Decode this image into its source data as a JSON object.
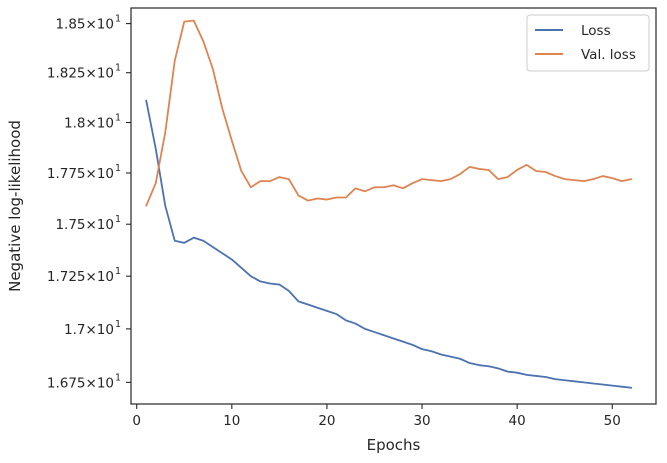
{
  "chart_data": {
    "type": "line",
    "xlabel": "Epochs",
    "ylabel": "Negative log-likelihood",
    "xlim": [
      -0.6,
      54.6
    ],
    "ylim": [
      16.65,
      18.58
    ],
    "y_scale": "log",
    "xticks": [
      0,
      10,
      20,
      30,
      40,
      50
    ],
    "xtick_labels": [
      "0",
      "10",
      "20",
      "30",
      "40",
      "50"
    ],
    "yticks": [
      16.75,
      17.0,
      17.25,
      17.5,
      17.75,
      18.0,
      18.25,
      18.5
    ],
    "ytick_mantissas": [
      "1.675",
      "1.7",
      "1.725",
      "1.75",
      "1.775",
      "1.8",
      "1.825",
      "1.85"
    ],
    "ytick_suffix": "×10",
    "ytick_exponent": "1",
    "grid": false,
    "legend_position": "top-right",
    "x": [
      1,
      2,
      3,
      4,
      5,
      6,
      7,
      8,
      9,
      10,
      11,
      12,
      13,
      14,
      15,
      16,
      17,
      18,
      19,
      20,
      21,
      22,
      23,
      24,
      25,
      26,
      27,
      28,
      29,
      30,
      31,
      32,
      33,
      34,
      35,
      36,
      37,
      38,
      39,
      40,
      41,
      42,
      43,
      44,
      45,
      46,
      47,
      48,
      49,
      50,
      51,
      52
    ],
    "series": [
      {
        "name": "Loss",
        "color": "#4c72b0",
        "values": [
          18.11,
          17.87,
          17.59,
          17.42,
          17.41,
          17.435,
          17.42,
          17.39,
          17.36,
          17.33,
          17.29,
          17.25,
          17.225,
          17.215,
          17.21,
          17.18,
          17.13,
          17.115,
          17.1,
          17.085,
          17.07,
          17.04,
          17.025,
          17.0,
          16.985,
          16.97,
          16.955,
          16.94,
          16.925,
          16.905,
          16.895,
          16.88,
          16.87,
          16.86,
          16.84,
          16.83,
          16.825,
          16.815,
          16.8,
          16.795,
          16.785,
          16.78,
          16.775,
          16.765,
          16.76,
          16.755,
          16.75,
          16.745,
          16.74,
          16.735,
          16.73,
          16.725
        ]
      },
      {
        "name": "Val. loss",
        "color": "#dd8452",
        "values": [
          17.59,
          17.7,
          17.95,
          18.31,
          18.51,
          18.515,
          18.41,
          18.27,
          18.07,
          17.91,
          17.76,
          17.68,
          17.71,
          17.71,
          17.73,
          17.72,
          17.64,
          17.615,
          17.625,
          17.62,
          17.63,
          17.63,
          17.675,
          17.66,
          17.68,
          17.68,
          17.69,
          17.675,
          17.7,
          17.72,
          17.715,
          17.71,
          17.72,
          17.745,
          17.78,
          17.77,
          17.765,
          17.72,
          17.73,
          17.765,
          17.79,
          17.76,
          17.755,
          17.735,
          17.72,
          17.715,
          17.71,
          17.72,
          17.735,
          17.725,
          17.71,
          17.72
        ]
      }
    ]
  }
}
